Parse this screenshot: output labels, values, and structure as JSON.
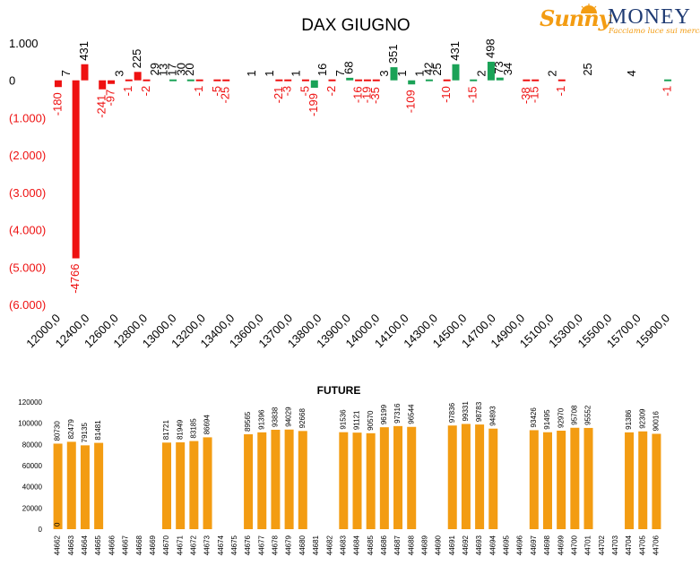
{
  "logo": {
    "word1": "Sunny",
    "word2": "MONEY",
    "tagline": "Facciamo luce sui mercati"
  },
  "colors": {
    "positive": "#1aa257",
    "negative": "#ee1111",
    "future_bar": "#f39c12"
  },
  "chart_data": [
    {
      "type": "bar",
      "title": "DAX GIUGNO",
      "ylim": [
        -6000,
        1000
      ],
      "yticks": [
        1000,
        0,
        -1000,
        -2000,
        -3000,
        -4000,
        -5000,
        -6000
      ],
      "ytick_labels": [
        "1.000",
        "0",
        "(1.000)",
        "(2.000)",
        "(3.000)",
        "(4.000)",
        "(5.000)",
        "(6.000)"
      ],
      "x_tick_labels": [
        "12000,0",
        "12400,0",
        "12600,0",
        "12800,0",
        "13000,0",
        "13200,0",
        "13400,0",
        "13600,0",
        "13700,0",
        "13800,0",
        "13900,0",
        "14000,0",
        "14100,0",
        "14300,0",
        "14500,0",
        "14700,0",
        "14900,0",
        "15100,0",
        "15300,0",
        "15500,0",
        "15700,0",
        "15900,0"
      ],
      "grid": false,
      "bars": [
        {
          "v": -180,
          "c": "neg"
        },
        {
          "v": 7,
          "c": "none"
        },
        {
          "v": -4766,
          "c": "neg"
        },
        {
          "v": 431,
          "c": "neg"
        },
        {
          "v": null,
          "c": "none"
        },
        {
          "v": -241,
          "c": "neg"
        },
        {
          "v": -97,
          "c": "neg"
        },
        {
          "v": 3,
          "c": "none"
        },
        {
          "v": -1,
          "c": "neg"
        },
        {
          "v": 225,
          "c": "neg"
        },
        {
          "v": -2,
          "c": "neg"
        },
        {
          "v": 29,
          "c": "none"
        },
        {
          "v": 13,
          "c": "none"
        },
        {
          "v": 17,
          "c": "pos"
        },
        {
          "v": 30,
          "c": "none"
        },
        {
          "v": 20,
          "c": "pos"
        },
        {
          "v": -1,
          "c": "neg"
        },
        {
          "v": null,
          "c": "none"
        },
        {
          "v": -5,
          "c": "neg"
        },
        {
          "v": -25,
          "c": "neg"
        },
        {
          "v": null,
          "c": "none"
        },
        {
          "v": null,
          "c": "none"
        },
        {
          "v": 1,
          "c": "none"
        },
        {
          "v": null,
          "c": "none"
        },
        {
          "v": 1,
          "c": "none"
        },
        {
          "v": -21,
          "c": "neg"
        },
        {
          "v": -3,
          "c": "neg"
        },
        {
          "v": 1,
          "c": "none"
        },
        {
          "v": -5,
          "c": "neg"
        },
        {
          "v": -199,
          "c": "pos"
        },
        {
          "v": 16,
          "c": "none"
        },
        {
          "v": -2,
          "c": "neg"
        },
        {
          "v": 7,
          "c": "none"
        },
        {
          "v": 68,
          "c": "pos"
        },
        {
          "v": -16,
          "c": "neg"
        },
        {
          "v": -19,
          "c": "neg"
        },
        {
          "v": -35,
          "c": "neg"
        },
        {
          "v": 3,
          "c": "none"
        },
        {
          "v": 351,
          "c": "pos"
        },
        {
          "v": 1,
          "c": "none"
        },
        {
          "v": -109,
          "c": "pos"
        },
        {
          "v": 1,
          "c": "none"
        },
        {
          "v": 42,
          "c": "pos"
        },
        {
          "v": 25,
          "c": "none"
        },
        {
          "v": -10,
          "c": "neg"
        },
        {
          "v": 431,
          "c": "pos"
        },
        {
          "v": null,
          "c": "none"
        },
        {
          "v": -15,
          "c": "pos"
        },
        {
          "v": 2,
          "c": "none"
        },
        {
          "v": 498,
          "c": "pos"
        },
        {
          "v": 73,
          "c": "pos"
        },
        {
          "v": 34,
          "c": "none"
        },
        {
          "v": null,
          "c": "none"
        },
        {
          "v": -38,
          "c": "neg"
        },
        {
          "v": -15,
          "c": "neg"
        },
        {
          "v": null,
          "c": "none"
        },
        {
          "v": 2,
          "c": "none"
        },
        {
          "v": -1,
          "c": "neg"
        },
        {
          "v": null,
          "c": "none"
        },
        {
          "v": null,
          "c": "none"
        },
        {
          "v": 25,
          "c": "none"
        },
        {
          "v": null,
          "c": "none"
        },
        {
          "v": null,
          "c": "none"
        },
        {
          "v": null,
          "c": "none"
        },
        {
          "v": null,
          "c": "none"
        },
        {
          "v": 4,
          "c": "none"
        },
        {
          "v": null,
          "c": "none"
        },
        {
          "v": null,
          "c": "none"
        },
        {
          "v": null,
          "c": "none"
        },
        {
          "v": -1,
          "c": "pos"
        }
      ]
    },
    {
      "type": "bar",
      "title": "FUTURE",
      "ylim": [
        0,
        120000
      ],
      "yticks": [
        0,
        20000,
        40000,
        60000,
        80000,
        100000,
        120000
      ],
      "ytick_labels": [
        "0",
        "20000",
        "40000",
        "60000",
        "80000",
        "100000",
        "120000"
      ],
      "grid": false,
      "categories": [
        "44662",
        "44663",
        "44664",
        "44665",
        "44666",
        "44667",
        "44668",
        "44669",
        "44670",
        "44671",
        "44672",
        "44673",
        "44674",
        "44675",
        "44676",
        "44677",
        "44678",
        "44679",
        "44680",
        "44681",
        "44682",
        "44683",
        "44684",
        "44685",
        "44686",
        "44687",
        "44688",
        "44689",
        "44690",
        "44691",
        "44692",
        "44693",
        "44694",
        "44695",
        "44696",
        "44697",
        "44698",
        "44699",
        "44700",
        "44701",
        "44702",
        "44703",
        "44704",
        "44705",
        "44706"
      ],
      "values": [
        80730,
        82479,
        79135,
        81481,
        null,
        null,
        null,
        null,
        81721,
        81949,
        83185,
        86694,
        null,
        null,
        89565,
        91396,
        93838,
        94029,
        92668,
        null,
        null,
        91536,
        91121,
        90570,
        96199,
        97316,
        96544,
        null,
        null,
        97836,
        99331,
        98783,
        94893,
        null,
        null,
        93426,
        91495,
        92970,
        95708,
        95552,
        null,
        null,
        91386,
        92309,
        90016
      ],
      "extra_labels": [
        {
          "category": "44662",
          "text": "0"
        }
      ]
    }
  ]
}
